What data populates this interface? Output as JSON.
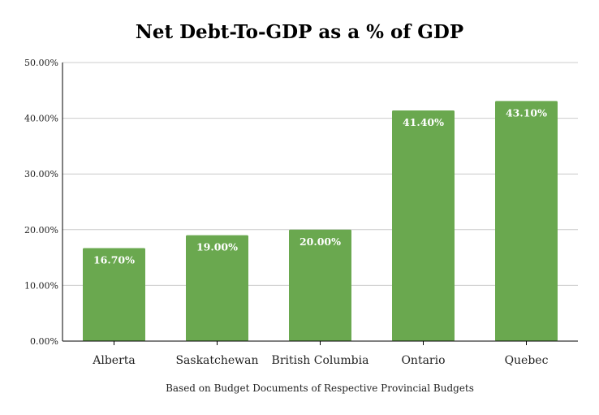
{
  "chart_data": {
    "type": "bar",
    "title": "Net Debt-To-GDP as a % of GDP",
    "xlabel": "Based on Budget Documents of Respective Provincial Budgets",
    "ylabel": "",
    "categories": [
      "Alberta",
      "Saskatchewan",
      "British Columbia",
      "Ontario",
      "Quebec"
    ],
    "values": [
      16.7,
      19.0,
      20.0,
      41.4,
      43.1
    ],
    "value_labels": [
      "16.70%",
      "19.00%",
      "20.00%",
      "41.40%",
      "43.10%"
    ],
    "ylim": [
      0,
      50
    ],
    "yticks": [
      0,
      10,
      20,
      30,
      40,
      50
    ],
    "ytick_labels": [
      "0.00%",
      "10.00%",
      "20.00%",
      "30.00%",
      "40.00%",
      "50.00%"
    ],
    "grid": true,
    "legend": "none",
    "colors": {
      "bar": "#6aa84f",
      "grid": "#cccccc",
      "axis": "#000000"
    }
  }
}
